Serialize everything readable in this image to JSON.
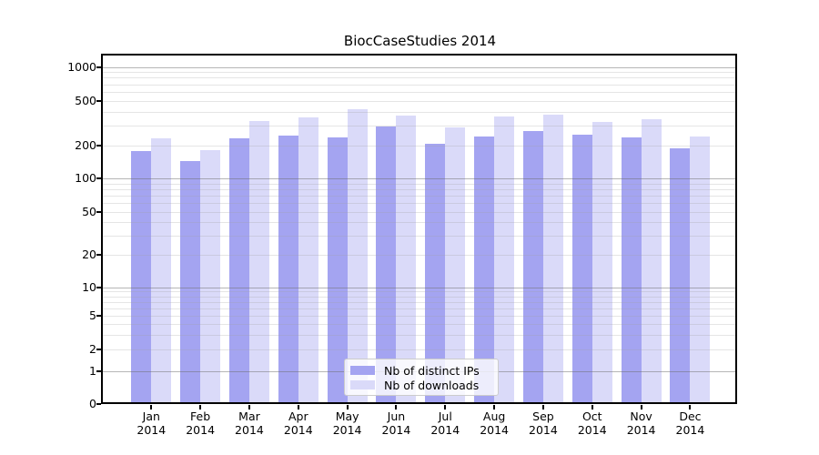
{
  "figure": {
    "title": "BiocCaseStudies 2014"
  },
  "chart_data": {
    "type": "bar",
    "title": "BiocCaseStudies 2014",
    "year_label": "2014",
    "categories": [
      "Jan 2014",
      "Feb 2014",
      "Mar 2014",
      "Apr 2014",
      "May 2014",
      "Jun 2014",
      "Jul 2014",
      "Aug 2014",
      "Sep 2014",
      "Oct 2014",
      "Nov 2014",
      "Dec 2014"
    ],
    "month_labels": [
      "Jan",
      "Feb",
      "Mar",
      "Apr",
      "May",
      "Jun",
      "Jul",
      "Aug",
      "Sep",
      "Oct",
      "Nov",
      "Dec"
    ],
    "series": [
      {
        "name": "Nb of distinct IPs",
        "color": "#a4a4f1",
        "values": [
          178,
          144,
          232,
          245,
          236,
          295,
          206,
          241,
          270,
          248,
          236,
          189
        ]
      },
      {
        "name": "Nb of downloads",
        "color": "#dadaf9",
        "values": [
          232,
          183,
          331,
          356,
          419,
          367,
          287,
          361,
          378,
          325,
          345,
          241
        ]
      }
    ],
    "xlabel": "",
    "ylabel": "",
    "yscale": "log",
    "ylim": [
      0,
      1000
    ],
    "yticks": [
      0,
      1,
      2,
      5,
      10,
      20,
      50,
      100,
      200,
      500,
      1000
    ],
    "grid": true,
    "legend_position": "bottom-center-inside"
  },
  "colors": {
    "bar_distinct_ips": "#a4a4f1",
    "bar_downloads": "#dadaf9",
    "grid_major": "rgba(110,110,110,0.5)",
    "grid_minor": "rgba(160,160,160,0.28)",
    "axis": "#000000",
    "legend_border": "#cccccc",
    "background": "#ffffff"
  }
}
